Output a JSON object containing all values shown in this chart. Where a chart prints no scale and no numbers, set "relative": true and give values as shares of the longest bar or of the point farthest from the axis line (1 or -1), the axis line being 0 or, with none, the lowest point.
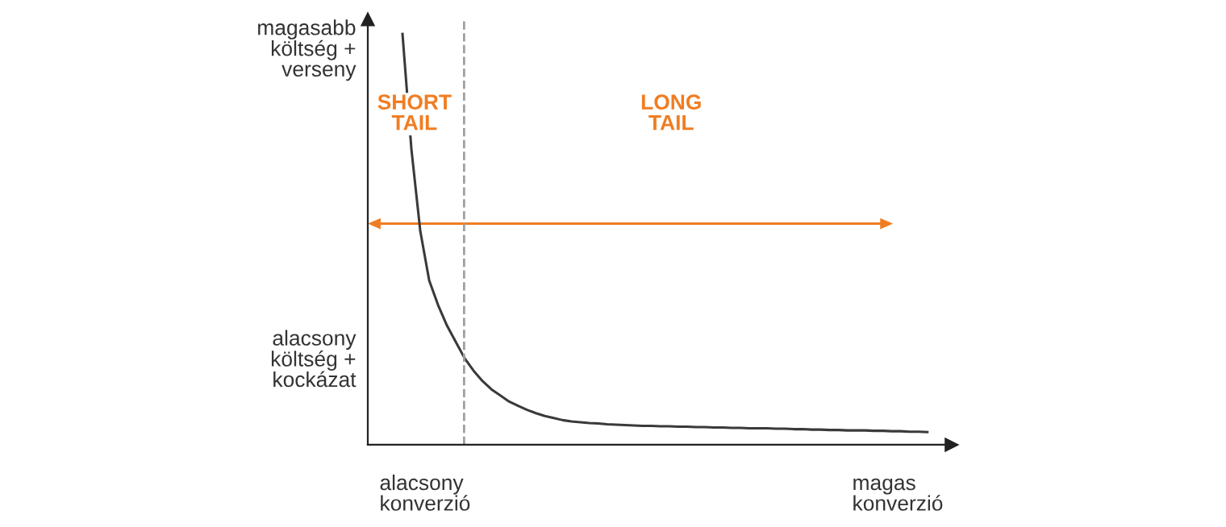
{
  "chart_data": {
    "type": "line",
    "relative": true,
    "color": "#3a3a3a",
    "marker": "none",
    "line_style": "solid",
    "categories": [
      null,
      null,
      null,
      null,
      null,
      null,
      null,
      null,
      null,
      null,
      null,
      null,
      null,
      null,
      null,
      null,
      null,
      null,
      null,
      null,
      null,
      null,
      null,
      null,
      null,
      null,
      null,
      null,
      null,
      null,
      null,
      null,
      null,
      null,
      null,
      null,
      null,
      null,
      null,
      null,
      null,
      null,
      null,
      null,
      null,
      null,
      null,
      null,
      null,
      null,
      null,
      null,
      null,
      null,
      null,
      null,
      null,
      null,
      null,
      null
    ],
    "values": [
      1.0,
      0.72,
      0.52,
      0.4,
      0.34,
      0.29,
      0.25,
      0.21,
      0.18,
      0.155,
      0.135,
      0.12,
      0.105,
      0.095,
      0.085,
      0.077,
      0.07,
      0.065,
      0.06,
      0.057,
      0.055,
      0.053,
      0.052,
      0.05,
      0.049,
      0.048,
      0.047,
      0.046,
      0.046,
      0.045,
      0.045,
      0.044,
      0.044,
      0.043,
      0.043,
      0.042,
      0.042,
      0.041,
      0.041,
      0.04,
      0.04,
      0.04,
      0.039,
      0.039,
      0.038,
      0.038,
      0.037,
      0.037,
      0.036,
      0.036,
      0.035,
      0.035,
      0.035,
      0.034,
      0.034,
      0.033,
      0.033,
      0.032,
      0.032,
      0.031
    ],
    "annotations": [
      "magasabb\nköltség +\nverseny",
      "alacsony\nköltség +\nkockázat",
      "alacsony\nkonverzió",
      "magas\nkonverzió",
      "SHORT\nTAIL",
      "LONG\nTAIL"
    ]
  }
}
